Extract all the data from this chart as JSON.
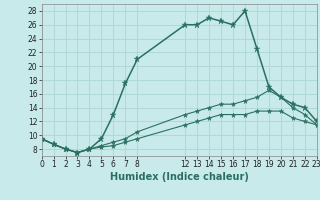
{
  "xlabel": "Humidex (Indice chaleur)",
  "background_color": "#c8eaea",
  "grid_color": "#b0d8d8",
  "line_color": "#2a7060",
  "xlim": [
    0,
    23
  ],
  "ylim": [
    7,
    29
  ],
  "yticks": [
    8,
    10,
    12,
    14,
    16,
    18,
    20,
    22,
    24,
    26,
    28
  ],
  "xtick_positions": [
    0,
    1,
    2,
    3,
    4,
    5,
    6,
    7,
    8,
    12,
    13,
    14,
    15,
    16,
    17,
    18,
    19,
    20,
    21,
    22,
    23
  ],
  "xtick_labels": [
    "0",
    "1",
    "2",
    "3",
    "4",
    "5",
    "6",
    "7",
    "8",
    "12",
    "13",
    "14",
    "15",
    "16",
    "17",
    "18",
    "19",
    "20",
    "21",
    "22",
    "23"
  ],
  "line1_x": [
    0,
    1,
    2,
    3,
    4,
    5,
    6,
    7,
    8,
    12,
    13,
    14,
    15,
    16,
    17,
    18,
    19,
    20,
    21,
    22,
    23
  ],
  "line1_y": [
    9.5,
    8.7,
    8.0,
    7.5,
    8.0,
    9.5,
    13.0,
    17.5,
    21.0,
    26.0,
    26.0,
    27.0,
    26.5,
    26.0,
    28.0,
    22.5,
    17.0,
    15.5,
    14.5,
    14.0,
    12.0
  ],
  "line2_x": [
    0,
    1,
    2,
    3,
    4,
    5,
    6,
    7,
    8,
    12,
    13,
    14,
    15,
    16,
    17,
    18,
    19,
    20,
    21,
    22,
    23
  ],
  "line2_y": [
    9.5,
    8.7,
    8.0,
    7.5,
    8.0,
    8.5,
    9.0,
    9.5,
    10.5,
    13.0,
    13.5,
    14.0,
    14.5,
    14.5,
    15.0,
    15.5,
    16.5,
    15.5,
    14.0,
    13.0,
    11.5
  ],
  "line3_x": [
    0,
    1,
    2,
    3,
    4,
    5,
    6,
    7,
    8,
    12,
    13,
    14,
    15,
    16,
    17,
    18,
    19,
    20,
    21,
    22,
    23
  ],
  "line3_y": [
    9.5,
    8.7,
    8.0,
    7.5,
    8.0,
    8.3,
    8.5,
    9.0,
    9.5,
    11.5,
    12.0,
    12.5,
    13.0,
    13.0,
    13.0,
    13.5,
    13.5,
    13.5,
    12.5,
    12.0,
    11.5
  ]
}
